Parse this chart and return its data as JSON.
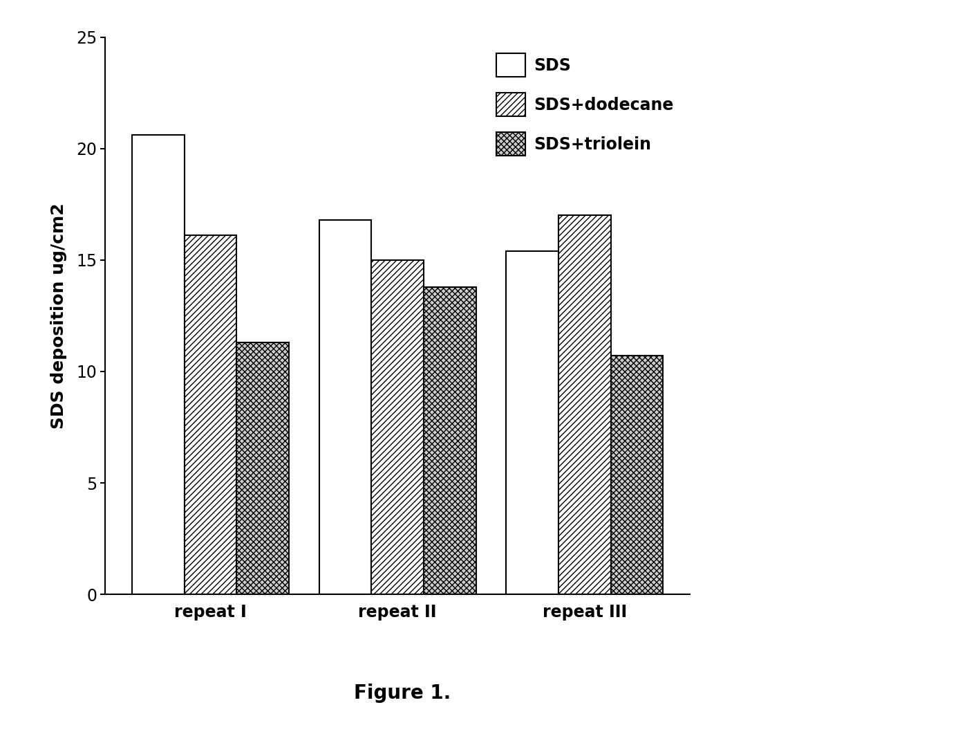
{
  "categories": [
    "repeat I",
    "repeat II",
    "repeat III"
  ],
  "series": {
    "SDS": [
      20.6,
      16.8,
      15.4
    ],
    "SDS+dodecane": [
      16.1,
      15.0,
      17.0
    ],
    "SDS+triolein": [
      11.3,
      13.8,
      10.7
    ]
  },
  "ylabel": "SDS deposition ug/cm2",
  "ylim": [
    0,
    25
  ],
  "yticks": [
    0,
    5,
    10,
    15,
    20,
    25
  ],
  "legend_labels": [
    "SDS",
    "SDS+dodecane",
    "SDS+triolein"
  ],
  "caption": "Figure 1.",
  "bar_width": 0.28,
  "figure_facecolor": "#ffffff",
  "axes_facecolor": "#ffffff",
  "label_fontsize": 18,
  "tick_fontsize": 17,
  "legend_fontsize": 17,
  "caption_fontsize": 20
}
